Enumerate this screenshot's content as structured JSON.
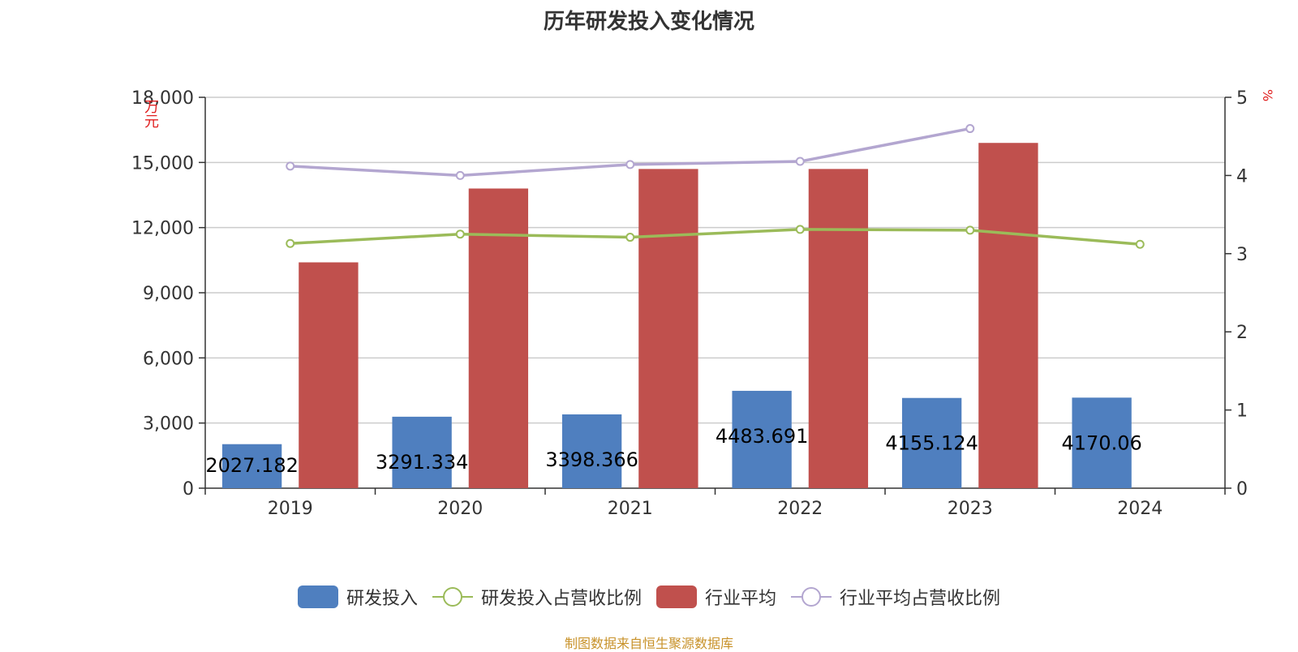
{
  "title": "历年研发投入变化情况",
  "source": "制图数据来自恒生聚源数据库",
  "chart_data": {
    "type": "bar",
    "categories": [
      "2019",
      "2020",
      "2021",
      "2022",
      "2023",
      "2024"
    ],
    "y_left": {
      "unit": "万元",
      "ylim": [
        0,
        18000
      ],
      "ticks": [
        "0",
        "3,000",
        "6,000",
        "9,000",
        "12,000",
        "15,000",
        "18,000"
      ]
    },
    "y_right": {
      "unit": "%",
      "ylim": [
        0,
        5
      ],
      "ticks": [
        "0",
        "1",
        "2",
        "3",
        "4",
        "5"
      ]
    },
    "grid": true,
    "legend_position": "bottom",
    "series": [
      {
        "name": "研发投入",
        "type": "bar",
        "axis": "left",
        "color": "#4f7fbf",
        "values": [
          2027.182,
          3291.334,
          3398.366,
          4483.691,
          4155.124,
          4170.06
        ],
        "labels": [
          "2027.182",
          "3291.334",
          "3398.366",
          "4483.691",
          "4155.124",
          "4170.06"
        ]
      },
      {
        "name": "行业平均",
        "type": "bar",
        "axis": "left",
        "color": "#c0504d",
        "values": [
          10400,
          13800,
          14700,
          14700,
          15900,
          null
        ]
      },
      {
        "name": "研发投入占营收比例",
        "type": "line",
        "axis": "right",
        "color": "#9bbb59",
        "values": [
          3.13,
          3.25,
          3.21,
          3.31,
          3.3,
          3.12
        ]
      },
      {
        "name": "行业平均占营收比例",
        "type": "line",
        "axis": "right",
        "color": "#b3a6d0",
        "values": [
          4.12,
          4.0,
          4.14,
          4.18,
          4.6,
          null
        ]
      }
    ],
    "legend": [
      "研发投入",
      "研发投入占营收比例",
      "行业平均",
      "行业平均占营收比例"
    ]
  }
}
